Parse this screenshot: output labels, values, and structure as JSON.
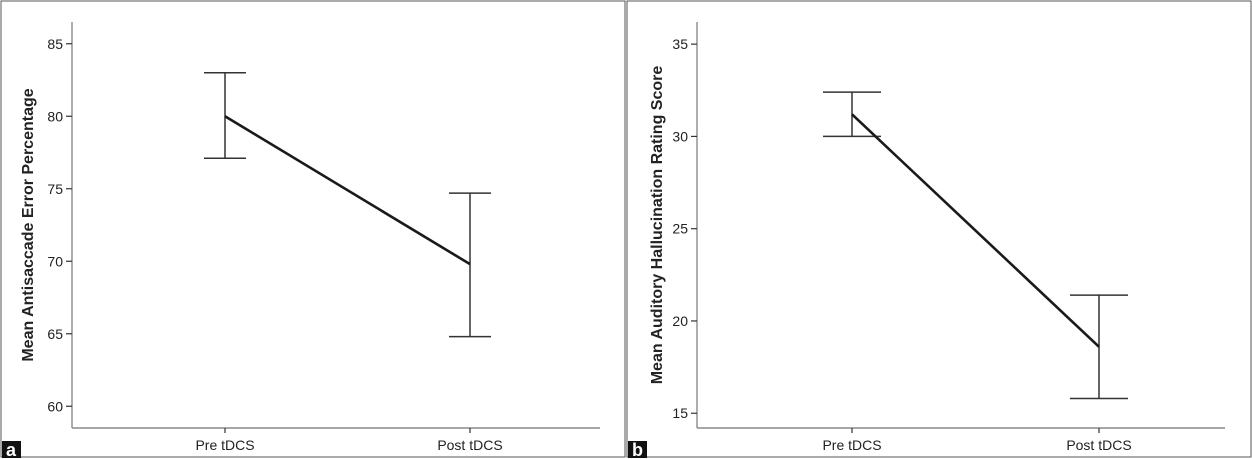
{
  "chart_data": [
    {
      "type": "line",
      "panel": "a",
      "categories": [
        "Pre tDCS",
        "Post tDCS"
      ],
      "values": [
        80.0,
        69.8
      ],
      "error_low": [
        77.1,
        64.8
      ],
      "error_high": [
        83.0,
        74.7
      ],
      "ylabel": "Mean Antisaccade Error Percentage",
      "ylim": [
        58.5,
        86.5
      ],
      "yticks": [
        60,
        65,
        70,
        75,
        80,
        85
      ]
    },
    {
      "type": "line",
      "panel": "b",
      "categories": [
        "Pre tDCS",
        "Post tDCS"
      ],
      "values": [
        31.2,
        18.6
      ],
      "error_low": [
        30.0,
        15.8
      ],
      "error_high": [
        32.4,
        21.4
      ],
      "ylabel": "Mean Auditory Hallucination Rating Score",
      "ylim": [
        14.2,
        36.2
      ],
      "yticks": [
        15,
        20,
        25,
        30,
        35
      ]
    }
  ]
}
